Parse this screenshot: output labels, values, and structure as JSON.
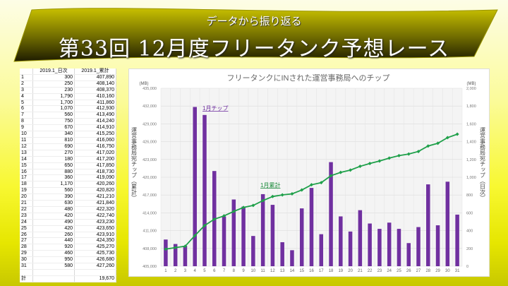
{
  "header": {
    "subtitle": "データから振り返る",
    "title": "第33回 12月度フリータンク予想レース"
  },
  "table": {
    "columns": [
      "",
      "2019.1_日次",
      "2019.1_累計"
    ],
    "rows": [
      [
        "1",
        "300",
        "407,890"
      ],
      [
        "2",
        "250",
        "408,140"
      ],
      [
        "3",
        "230",
        "408,370"
      ],
      [
        "4",
        "1,790",
        "410,160"
      ],
      [
        "5",
        "1,700",
        "411,860"
      ],
      [
        "6",
        "1,070",
        "412,930"
      ],
      [
        "7",
        "560",
        "413,490"
      ],
      [
        "8",
        "750",
        "414,240"
      ],
      [
        "9",
        "670",
        "414,910"
      ],
      [
        "10",
        "340",
        "415,250"
      ],
      [
        "11",
        "810",
        "416,060"
      ],
      [
        "12",
        "690",
        "416,750"
      ],
      [
        "13",
        "270",
        "417,020"
      ],
      [
        "14",
        "180",
        "417,200"
      ],
      [
        "15",
        "650",
        "417,850"
      ],
      [
        "16",
        "880",
        "418,730"
      ],
      [
        "17",
        "360",
        "419,090"
      ],
      [
        "18",
        "1,170",
        "420,260"
      ],
      [
        "19",
        "560",
        "420,820"
      ],
      [
        "20",
        "390",
        "421,210"
      ],
      [
        "21",
        "630",
        "421,840"
      ],
      [
        "22",
        "480",
        "422,320"
      ],
      [
        "23",
        "420",
        "422,740"
      ],
      [
        "24",
        "490",
        "423,230"
      ],
      [
        "25",
        "420",
        "423,650"
      ],
      [
        "26",
        "260",
        "423,910"
      ],
      [
        "27",
        "440",
        "424,350"
      ],
      [
        "28",
        "920",
        "425,270"
      ],
      [
        "29",
        "460",
        "425,730"
      ],
      [
        "30",
        "950",
        "426,680"
      ],
      [
        "31",
        "580",
        "427,260"
      ]
    ],
    "total_label": "計",
    "total": "19,670"
  },
  "chart_data": {
    "type": "bar+line",
    "title": "フリータンクにINされた運営事務局へのチップ",
    "categories": [
      "1",
      "2",
      "3",
      "4",
      "5",
      "6",
      "7",
      "8",
      "9",
      "10",
      "11",
      "12",
      "13",
      "14",
      "15",
      "16",
      "17",
      "18",
      "19",
      "20",
      "21",
      "22",
      "23",
      "24",
      "25",
      "26",
      "27",
      "28",
      "29",
      "30",
      "31"
    ],
    "series": [
      {
        "name": "1月チップ",
        "type": "bar",
        "axis": "right",
        "color": "#7030a0",
        "values": [
          300,
          250,
          230,
          1790,
          1700,
          1070,
          560,
          750,
          670,
          340,
          810,
          690,
          270,
          180,
          650,
          880,
          360,
          1170,
          560,
          390,
          630,
          480,
          420,
          490,
          420,
          260,
          440,
          920,
          460,
          950,
          580
        ]
      },
      {
        "name": "1月累計",
        "type": "line",
        "axis": "left",
        "color": "#1fa04a",
        "values": [
          407890,
          408140,
          408370,
          410160,
          411860,
          412930,
          413490,
          414240,
          414910,
          415250,
          416060,
          416750,
          417020,
          417200,
          417850,
          418730,
          419090,
          420260,
          420820,
          421210,
          421840,
          422320,
          422740,
          423230,
          423650,
          423910,
          424350,
          425270,
          425730,
          426680,
          427260
        ]
      }
    ],
    "left_axis": {
      "unit": "(MB)",
      "label": "運営事務局宛チップ（累計）",
      "ylim": [
        405000,
        435000
      ],
      "step": 3000,
      "ticks": [
        "405,000",
        "408,000",
        "411,000",
        "414,000",
        "417,000",
        "420,000",
        "423,000",
        "426,000",
        "429,000",
        "432,000",
        "435,000"
      ]
    },
    "right_axis": {
      "unit": "(MB)",
      "label": "運営事務局宛チップ（日次）",
      "ylim": [
        0,
        2000
      ],
      "step": 200,
      "ticks": [
        "0",
        "200",
        "400",
        "600",
        "800",
        "1,000",
        "1,200",
        "1,400",
        "1,600",
        "1,800",
        "2,000"
      ]
    },
    "grid": true
  }
}
